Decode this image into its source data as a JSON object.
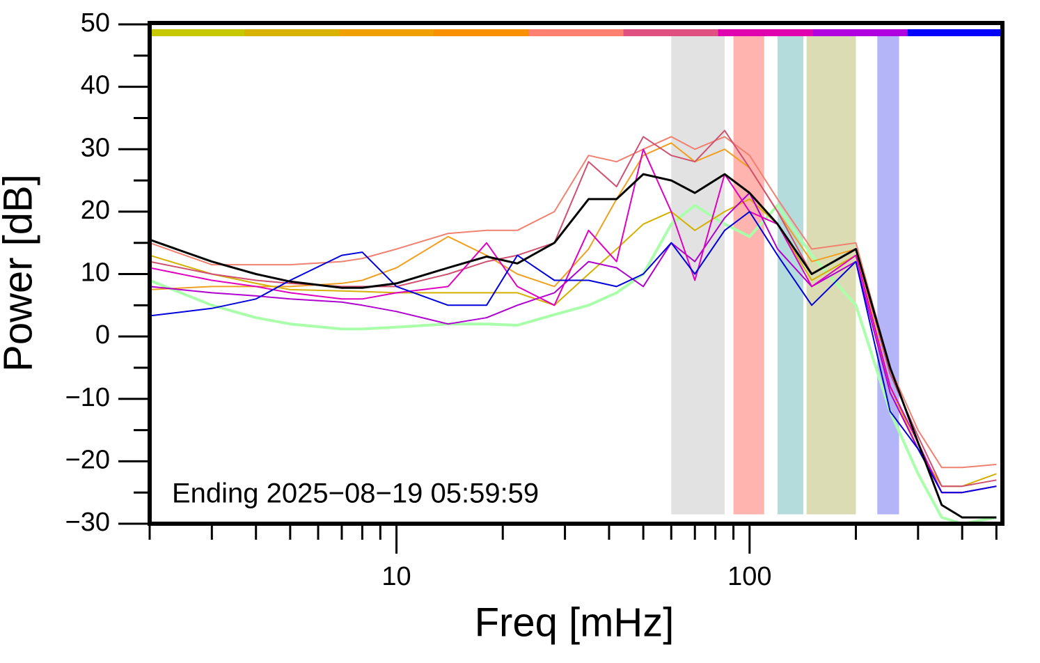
{
  "chart_data": {
    "type": "line",
    "xlabel": "Freq [mHz]",
    "ylabel": "Power [dB]",
    "annotation": "Ending 2025−08−19 05:59:59",
    "log_x": true,
    "xlim": [
      2,
      520
    ],
    "xticks": [
      10,
      100
    ],
    "xminor_ticks": [
      2,
      3,
      4,
      5,
      6,
      7,
      8,
      9,
      20,
      30,
      40,
      50,
      60,
      70,
      80,
      90,
      200,
      300,
      400,
      500
    ],
    "ylim": [
      -30,
      50
    ],
    "yticks": [
      {
        "value": -30,
        "label": "−30"
      },
      {
        "value": -20,
        "label": "−20"
      },
      {
        "value": -10,
        "label": "−10"
      },
      0,
      10,
      20,
      30,
      40,
      50
    ],
    "yminor_ticks": [
      -25,
      -15,
      -5,
      5,
      15,
      25,
      35,
      45
    ],
    "top_bar_colors": [
      "#c8c800",
      "#d8b400",
      "#f0a000",
      "#f89000",
      "#ff8070",
      "#e05080",
      "#e000b0",
      "#b000e0",
      "#0000ff"
    ],
    "bands": [
      {
        "x0": 60,
        "x1": 85,
        "color": "#e2e2e2"
      },
      {
        "x0": 90,
        "x1": 110,
        "color": "#ffb4b0"
      },
      {
        "x0": 120,
        "x1": 142,
        "color": "#b4dcdc"
      },
      {
        "x0": 145,
        "x1": 200,
        "color": "#dcdcb4"
      },
      {
        "x0": 230,
        "x1": 265,
        "color": "#b4b4f8"
      }
    ],
    "x": [
      2,
      3,
      4,
      5,
      7,
      8,
      10,
      14,
      18,
      22,
      28,
      35,
      42,
      50,
      60,
      70,
      85,
      100,
      120,
      150,
      200,
      250,
      300,
      350,
      400,
      500
    ],
    "series": [
      {
        "color": "#aaffaa",
        "width": 4,
        "values": [
          9,
          5,
          3,
          2,
          1.2,
          1.2,
          1.5,
          2,
          2,
          1.8,
          3.5,
          5,
          7,
          10,
          18,
          21,
          18,
          16,
          21,
          13,
          5,
          -12,
          -22,
          -29,
          -30,
          -29
        ]
      },
      {
        "color": "#f08070",
        "width": 2,
        "values": [
          15,
          11.5,
          11.5,
          11.5,
          12,
          12.5,
          14,
          16.5,
          17,
          17,
          20,
          29,
          28,
          30,
          32,
          30,
          32,
          29,
          22,
          14,
          15,
          -5,
          -15,
          -21,
          -21,
          -20.5
        ]
      },
      {
        "color": "#f0a020",
        "width": 2,
        "values": [
          7.5,
          8,
          8,
          8,
          8.5,
          9,
          11,
          16,
          13,
          10,
          8,
          14,
          22,
          29,
          31,
          28,
          30,
          27,
          20,
          12,
          14,
          -8,
          -18,
          -25,
          -25,
          -24
        ]
      },
      {
        "color": "#d4b000",
        "width": 2,
        "values": [
          13,
          10,
          8.5,
          7.5,
          7.3,
          7.2,
          7,
          7,
          7,
          7,
          5,
          10,
          14,
          18,
          20,
          17,
          20,
          22,
          18,
          9,
          13,
          -8,
          -18,
          -24,
          -24,
          -22
        ]
      },
      {
        "color": "#d05070",
        "width": 2,
        "values": [
          12,
          10,
          9,
          8.5,
          8,
          8,
          8,
          10,
          12,
          13,
          15,
          28,
          24,
          32,
          29,
          28,
          33,
          27,
          20,
          10,
          14,
          -6,
          -16,
          -24,
          -24,
          -23
        ]
      },
      {
        "color": "#b000d0",
        "width": 2,
        "values": [
          8,
          7,
          6.5,
          6,
          5.5,
          5,
          4,
          2,
          3,
          5,
          7,
          12,
          11,
          8,
          15,
          12,
          19,
          23,
          14,
          8,
          12,
          -9,
          -18,
          -25,
          -25,
          -24
        ]
      },
      {
        "color": "#e000c0",
        "width": 2,
        "values": [
          11,
          9,
          8,
          7,
          6,
          6,
          7,
          8,
          15,
          8,
          5,
          17,
          12,
          30,
          20,
          9,
          26,
          20,
          18,
          8,
          13,
          -8,
          -17,
          -25,
          -25,
          -24
        ]
      },
      {
        "color": "#0000dd",
        "width": 2,
        "values": [
          3.3,
          4.5,
          6,
          9,
          13,
          13.5,
          8,
          5,
          5,
          13,
          9,
          9,
          8,
          10,
          15,
          10,
          17,
          20,
          13,
          5,
          12,
          -12,
          -18,
          -25,
          -25,
          -24
        ]
      },
      {
        "color": "#000000",
        "width": 3,
        "values": [
          15.5,
          12,
          10,
          8.8,
          7.8,
          7.8,
          8.5,
          11,
          12.8,
          11.7,
          15,
          22,
          22,
          26,
          25,
          23,
          26,
          23,
          18,
          10,
          14,
          -5,
          -17,
          -27,
          -29,
          -29
        ]
      }
    ]
  }
}
